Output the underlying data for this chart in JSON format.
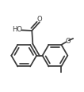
{
  "bg_color": "#ffffff",
  "line_color": "#3a3a3a",
  "line_width": 1.25,
  "text_color": "#3a3a3a",
  "font_size": 6.0,
  "figsize": [
    1.06,
    1.17
  ],
  "dpi": 100,
  "xlim": [
    0.0,
    1.0
  ],
  "ylim": [
    0.0,
    1.0
  ]
}
